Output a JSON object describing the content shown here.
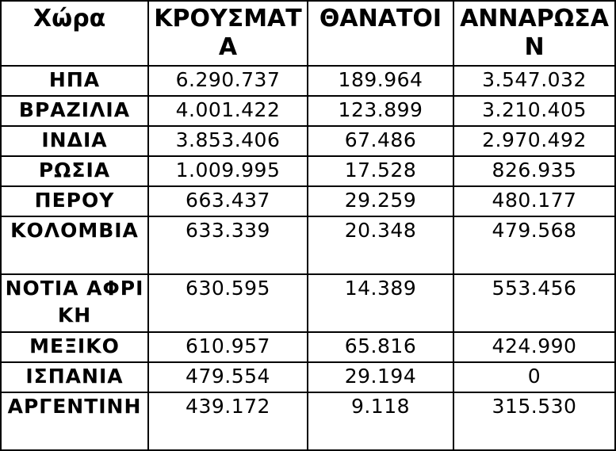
{
  "table": {
    "headers": {
      "country": "Χώρα",
      "cases": "ΚΡΟΥΣΜΑΤΑ",
      "deaths": "ΘΑΝΑΤΟΙ",
      "recovered": "ΑΝΝΑΡΩΣΑΝ"
    },
    "rows": [
      {
        "country": "ΗΠΑ",
        "cases": "6.290.737",
        "deaths": "189.964",
        "recovered": "3.547.032"
      },
      {
        "country": "ΒΡΑΖΙΛΙΑ",
        "cases": "4.001.422",
        "deaths": "123.899",
        "recovered": "3.210.405"
      },
      {
        "country": "ΙΝΔΙΑ",
        "cases": "3.853.406",
        "deaths": "67.486",
        "recovered": "2.970.492"
      },
      {
        "country": "ΡΩΣΙΑ",
        "cases": "1.009.995",
        "deaths": "17.528",
        "recovered": "826.935"
      },
      {
        "country": "ΠΕΡΟΥ",
        "cases": "663.437",
        "deaths": "29.259",
        "recovered": "480.177"
      },
      {
        "country": "ΚΟΛΟΜΒΙΑ",
        "cases": "633.339",
        "deaths": "20.348",
        "recovered": "479.568"
      },
      {
        "country": "ΝΟΤΙΑ ΑΦΡΙΚΗ",
        "cases": "630.595",
        "deaths": "14.389",
        "recovered": "553.456"
      },
      {
        "country": "ΜΕΞΙΚΟ",
        "cases": "610.957",
        "deaths": "65.816",
        "recovered": "424.990"
      },
      {
        "country": "ΙΣΠΑΝΙΑ",
        "cases": "479.554",
        "deaths": "29.194",
        "recovered": "0"
      },
      {
        "country": "ΑΡΓΕΝΤΙΝΗ",
        "cases": "439.172",
        "deaths": "9.118",
        "recovered": "315.530"
      }
    ]
  }
}
